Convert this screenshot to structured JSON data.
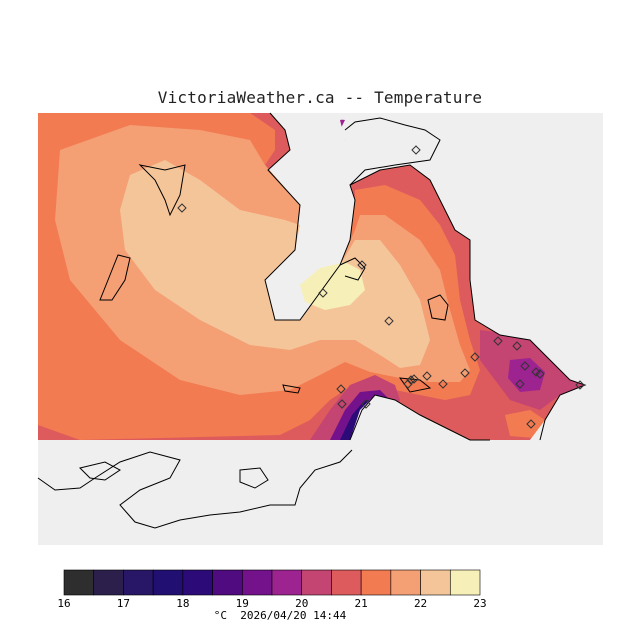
{
  "map": {
    "title": "VictoriaWeather.ca -- Temperature",
    "variable": "Temperature",
    "background_color": "#efefef",
    "land_outline_color": "#000000"
  },
  "legend": {
    "min": 16,
    "max": 23,
    "step": 0.5,
    "tick_labels": [
      "16",
      "17",
      "18",
      "19",
      "20",
      "21",
      "22",
      "23"
    ],
    "colors": [
      "#2e2e2e",
      "#2c1f4c",
      "#281766",
      "#220f72",
      "#2c0a78",
      "#4f0b7f",
      "#74128c",
      "#9d2391",
      "#c44472",
      "#dd5b5c",
      "#f27b52",
      "#f49f74",
      "#f5c59a",
      "#f7efb8"
    ],
    "unit_caption": "°C  2026/04/20 14:44"
  },
  "stations": {
    "marker": "diamond-icon",
    "count": 23
  }
}
